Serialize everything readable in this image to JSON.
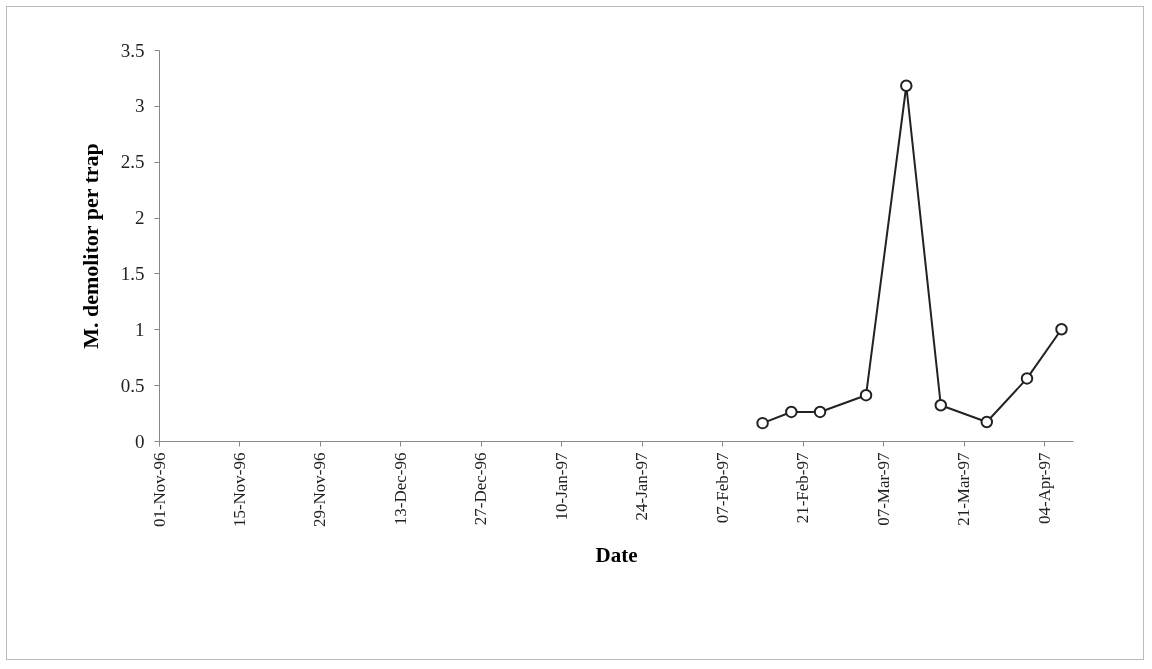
{
  "chart_data": {
    "type": "line",
    "xlabel": "Date",
    "ylabel": "M. demolitor per trap",
    "x": [
      "1997-02-14",
      "1997-02-19",
      "1997-02-24",
      "1997-03-04",
      "1997-03-11",
      "1997-03-17",
      "1997-03-25",
      "1997-04-01",
      "1997-04-07"
    ],
    "series": [
      {
        "color": "#222222",
        "values": [
          0.16,
          0.26,
          0.26,
          0.41,
          3.18,
          0.32,
          0.17,
          0.56,
          1.0
        ]
      }
    ],
    "xlim": [
      "1996-11-01",
      "1997-04-09"
    ],
    "xticks": [
      {
        "value": "1996-11-01",
        "label": "01-Nov-96"
      },
      {
        "value": "1996-11-15",
        "label": "15-Nov-96"
      },
      {
        "value": "1996-11-29",
        "label": "29-Nov-96"
      },
      {
        "value": "1996-12-13",
        "label": "13-Dec-96"
      },
      {
        "value": "1996-12-27",
        "label": "27-Dec-96"
      },
      {
        "value": "1997-01-10",
        "label": "10-Jan-97"
      },
      {
        "value": "1997-01-24",
        "label": "24-Jan-97"
      },
      {
        "value": "1997-02-07",
        "label": "07-Feb-97"
      },
      {
        "value": "1997-02-21",
        "label": "21-Feb-97"
      },
      {
        "value": "1997-03-07",
        "label": "07-Mar-97"
      },
      {
        "value": "1997-03-21",
        "label": "21-Mar-97"
      },
      {
        "value": "1997-04-04",
        "label": "04-Apr-97"
      }
    ],
    "ylim": [
      0,
      3.5
    ],
    "yticks": [
      0,
      0.5,
      1,
      1.5,
      2,
      2.5,
      3,
      3.5
    ],
    "grid": false,
    "marker": "circle",
    "line_style": "solid"
  }
}
